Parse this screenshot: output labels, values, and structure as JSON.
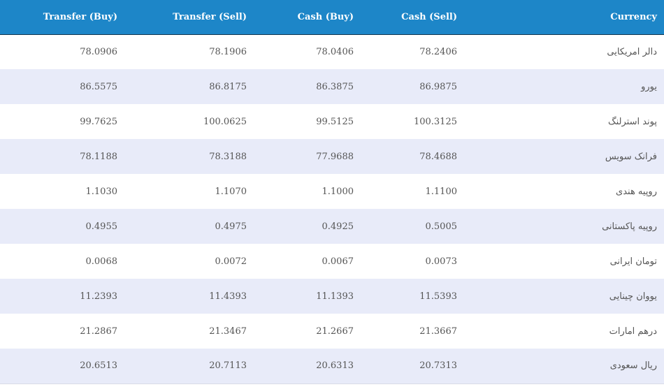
{
  "headers": {
    "transfer_buy": "Transfer (Buy)",
    "transfer_sell": "Transfer (Sell)",
    "cash_buy": "Cash (Buy)",
    "cash_sell": "Cash (Sell)",
    "currency": "Currency"
  },
  "rows": [
    {
      "transfer_buy": "78.0906",
      "transfer_sell": "78.1906",
      "cash_buy": "78.0406",
      "cash_sell": "78.2406",
      "currency": "دالر امریکایی"
    },
    {
      "transfer_buy": "86.5575",
      "transfer_sell": "86.8175",
      "cash_buy": "86.3875",
      "cash_sell": "86.9875",
      "currency": "یورو"
    },
    {
      "transfer_buy": "99.7625",
      "transfer_sell": "100.0625",
      "cash_buy": "99.5125",
      "cash_sell": "100.3125",
      "currency": "پوند استرلنگ"
    },
    {
      "transfer_buy": "78.1188",
      "transfer_sell": "78.3188",
      "cash_buy": "77.9688",
      "cash_sell": "78.4688",
      "currency": "فرانک سویس"
    },
    {
      "transfer_buy": "1.1030",
      "transfer_sell": "1.1070",
      "cash_buy": "1.1000",
      "cash_sell": "1.1100",
      "currency": "روپیه هندی"
    },
    {
      "transfer_buy": "0.4955",
      "transfer_sell": "0.4975",
      "cash_buy": "0.4925",
      "cash_sell": "0.5005",
      "currency": "روپیه پاکستانی"
    },
    {
      "transfer_buy": "0.0068",
      "transfer_sell": "0.0072",
      "cash_buy": "0.0067",
      "cash_sell": "0.0073",
      "currency": "تومان ایرانی"
    },
    {
      "transfer_buy": "11.2393",
      "transfer_sell": "11.4393",
      "cash_buy": "11.1393",
      "cash_sell": "11.5393",
      "currency": "یووان چینایی"
    },
    {
      "transfer_buy": "21.2867",
      "transfer_sell": "21.3467",
      "cash_buy": "21.2667",
      "cash_sell": "21.3667",
      "currency": "درهم امارات"
    },
    {
      "transfer_buy": "20.6513",
      "transfer_sell": "20.7113",
      "cash_buy": "20.6313",
      "cash_sell": "20.7313",
      "currency": "ریال سعودی"
    }
  ]
}
